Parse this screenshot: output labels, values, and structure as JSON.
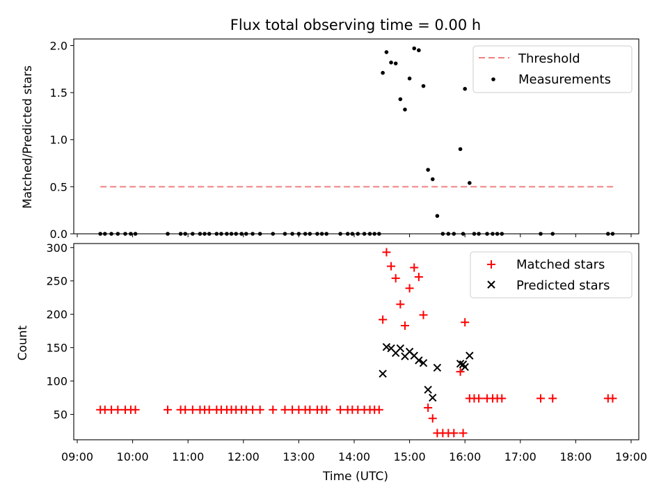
{
  "chart_data": [
    {
      "type": "scatter",
      "title": "Flux total observing time = 0.00 h",
      "xlabel": "",
      "ylabel": "Matched/Predicted stars",
      "xlim": [
        "09:00",
        "19:00"
      ],
      "ylim": [
        0,
        2.07
      ],
      "yticks": [
        "0.0",
        "0.5",
        "1.0",
        "1.5",
        "2.0"
      ],
      "yticks_values": [
        0,
        0.5,
        1.0,
        1.5,
        2.0
      ],
      "legend": "top-right",
      "series": [
        {
          "name": "Threshold",
          "style": "dashed-line",
          "color": "#f08080",
          "x": [
            "09:25",
            "18:42"
          ],
          "y": [
            0.5,
            0.5
          ]
        },
        {
          "name": "Measurements",
          "style": "dot",
          "color": "#000000",
          "x": [
            "09:25",
            "09:30",
            "09:37",
            "09:44",
            "09:52",
            "09:58",
            "10:03",
            "10:38",
            "10:52",
            "10:57",
            "11:05",
            "11:13",
            "11:18",
            "11:23",
            "11:31",
            "11:36",
            "11:42",
            "11:47",
            "11:52",
            "11:58",
            "12:03",
            "12:10",
            "12:18",
            "12:32",
            "12:45",
            "12:53",
            "13:00",
            "13:07",
            "13:12",
            "13:20",
            "13:25",
            "13:30",
            "13:45",
            "13:53",
            "13:58",
            "14:04",
            "14:11",
            "14:17",
            "14:22",
            "14:27",
            "14:31",
            "14:35",
            "14:40",
            "14:45",
            "14:50",
            "14:55",
            "15:00",
            "15:05",
            "15:10",
            "15:15",
            "15:20",
            "15:25",
            "15:30",
            "15:36",
            "15:42",
            "15:48",
            "15:55",
            "15:58",
            "16:00",
            "16:05",
            "16:10",
            "16:15",
            "16:24",
            "16:30",
            "16:35",
            "16:40",
            "17:22",
            "17:35",
            "18:35",
            "18:40"
          ],
          "y": [
            0,
            0,
            0,
            0,
            0,
            0,
            0,
            0,
            0,
            0,
            0,
            0,
            0,
            0,
            0,
            0,
            0,
            0,
            0,
            0,
            0,
            0,
            0,
            0,
            0,
            0,
            0,
            0,
            0,
            0,
            0,
            0,
            0,
            0,
            0,
            0,
            0,
            0,
            0,
            0,
            1.71,
            1.93,
            1.82,
            1.81,
            1.43,
            1.32,
            1.65,
            1.97,
            1.95,
            1.57,
            0.68,
            0.58,
            0.19,
            0,
            0,
            0,
            0.9,
            0,
            1.54,
            0.54,
            0,
            0,
            0,
            0,
            0,
            0,
            0,
            0,
            0,
            0
          ]
        }
      ]
    },
    {
      "type": "scatter",
      "title": "",
      "xlabel": "Time (UTC)",
      "ylabel": "Count",
      "xlim": [
        "09:00",
        "19:00"
      ],
      "xticks": [
        "09:00",
        "10:00",
        "11:00",
        "12:00",
        "13:00",
        "14:00",
        "15:00",
        "16:00",
        "17:00",
        "18:00",
        "19:00"
      ],
      "ylim": [
        12,
        306
      ],
      "yticks": [
        "50",
        "100",
        "150",
        "200",
        "250",
        "300"
      ],
      "yticks_values": [
        50,
        100,
        150,
        200,
        250,
        300
      ],
      "legend": "top-right",
      "series": [
        {
          "name": "Matched stars",
          "style": "plus",
          "color": "#ff0000",
          "x": [
            "09:25",
            "09:30",
            "09:37",
            "09:44",
            "09:52",
            "09:58",
            "10:03",
            "10:38",
            "10:52",
            "10:57",
            "11:05",
            "11:13",
            "11:18",
            "11:23",
            "11:31",
            "11:36",
            "11:42",
            "11:47",
            "11:52",
            "11:58",
            "12:03",
            "12:10",
            "12:18",
            "12:32",
            "12:45",
            "12:53",
            "13:00",
            "13:07",
            "13:12",
            "13:20",
            "13:25",
            "13:30",
            "13:45",
            "13:53",
            "13:58",
            "14:04",
            "14:11",
            "14:17",
            "14:22",
            "14:27",
            "14:31",
            "14:35",
            "14:40",
            "14:45",
            "14:50",
            "14:55",
            "15:00",
            "15:05",
            "15:10",
            "15:15",
            "15:20",
            "15:25",
            "15:30",
            "15:36",
            "15:42",
            "15:48",
            "15:55",
            "15:58",
            "16:00",
            "16:05",
            "16:10",
            "16:15",
            "16:24",
            "16:30",
            "16:35",
            "16:40",
            "17:22",
            "17:35",
            "18:35",
            "18:40"
          ],
          "y": [
            57,
            57,
            57,
            57,
            57,
            57,
            57,
            57,
            57,
            57,
            57,
            57,
            57,
            57,
            57,
            57,
            57,
            57,
            57,
            57,
            57,
            57,
            57,
            57,
            57,
            57,
            57,
            57,
            57,
            57,
            57,
            57,
            57,
            57,
            57,
            57,
            57,
            57,
            57,
            57,
            192,
            293,
            272,
            254,
            215,
            183,
            239,
            270,
            256,
            199,
            60,
            44,
            22,
            22,
            22,
            22,
            114,
            22,
            188,
            74,
            74,
            74,
            74,
            74,
            74,
            74,
            74,
            74,
            74,
            74
          ]
        },
        {
          "name": "Predicted stars",
          "style": "x",
          "color": "#000000",
          "x": [
            "14:31",
            "14:35",
            "14:40",
            "14:45",
            "14:50",
            "14:55",
            "15:00",
            "15:05",
            "15:10",
            "15:15",
            "15:20",
            "15:25",
            "15:30",
            "15:55",
            "15:58",
            "16:00",
            "16:05"
          ],
          "y": [
            111,
            151,
            149,
            142,
            149,
            137,
            144,
            138,
            131,
            127,
            87,
            75,
            120,
            126,
            125,
            121,
            138
          ]
        }
      ]
    }
  ]
}
